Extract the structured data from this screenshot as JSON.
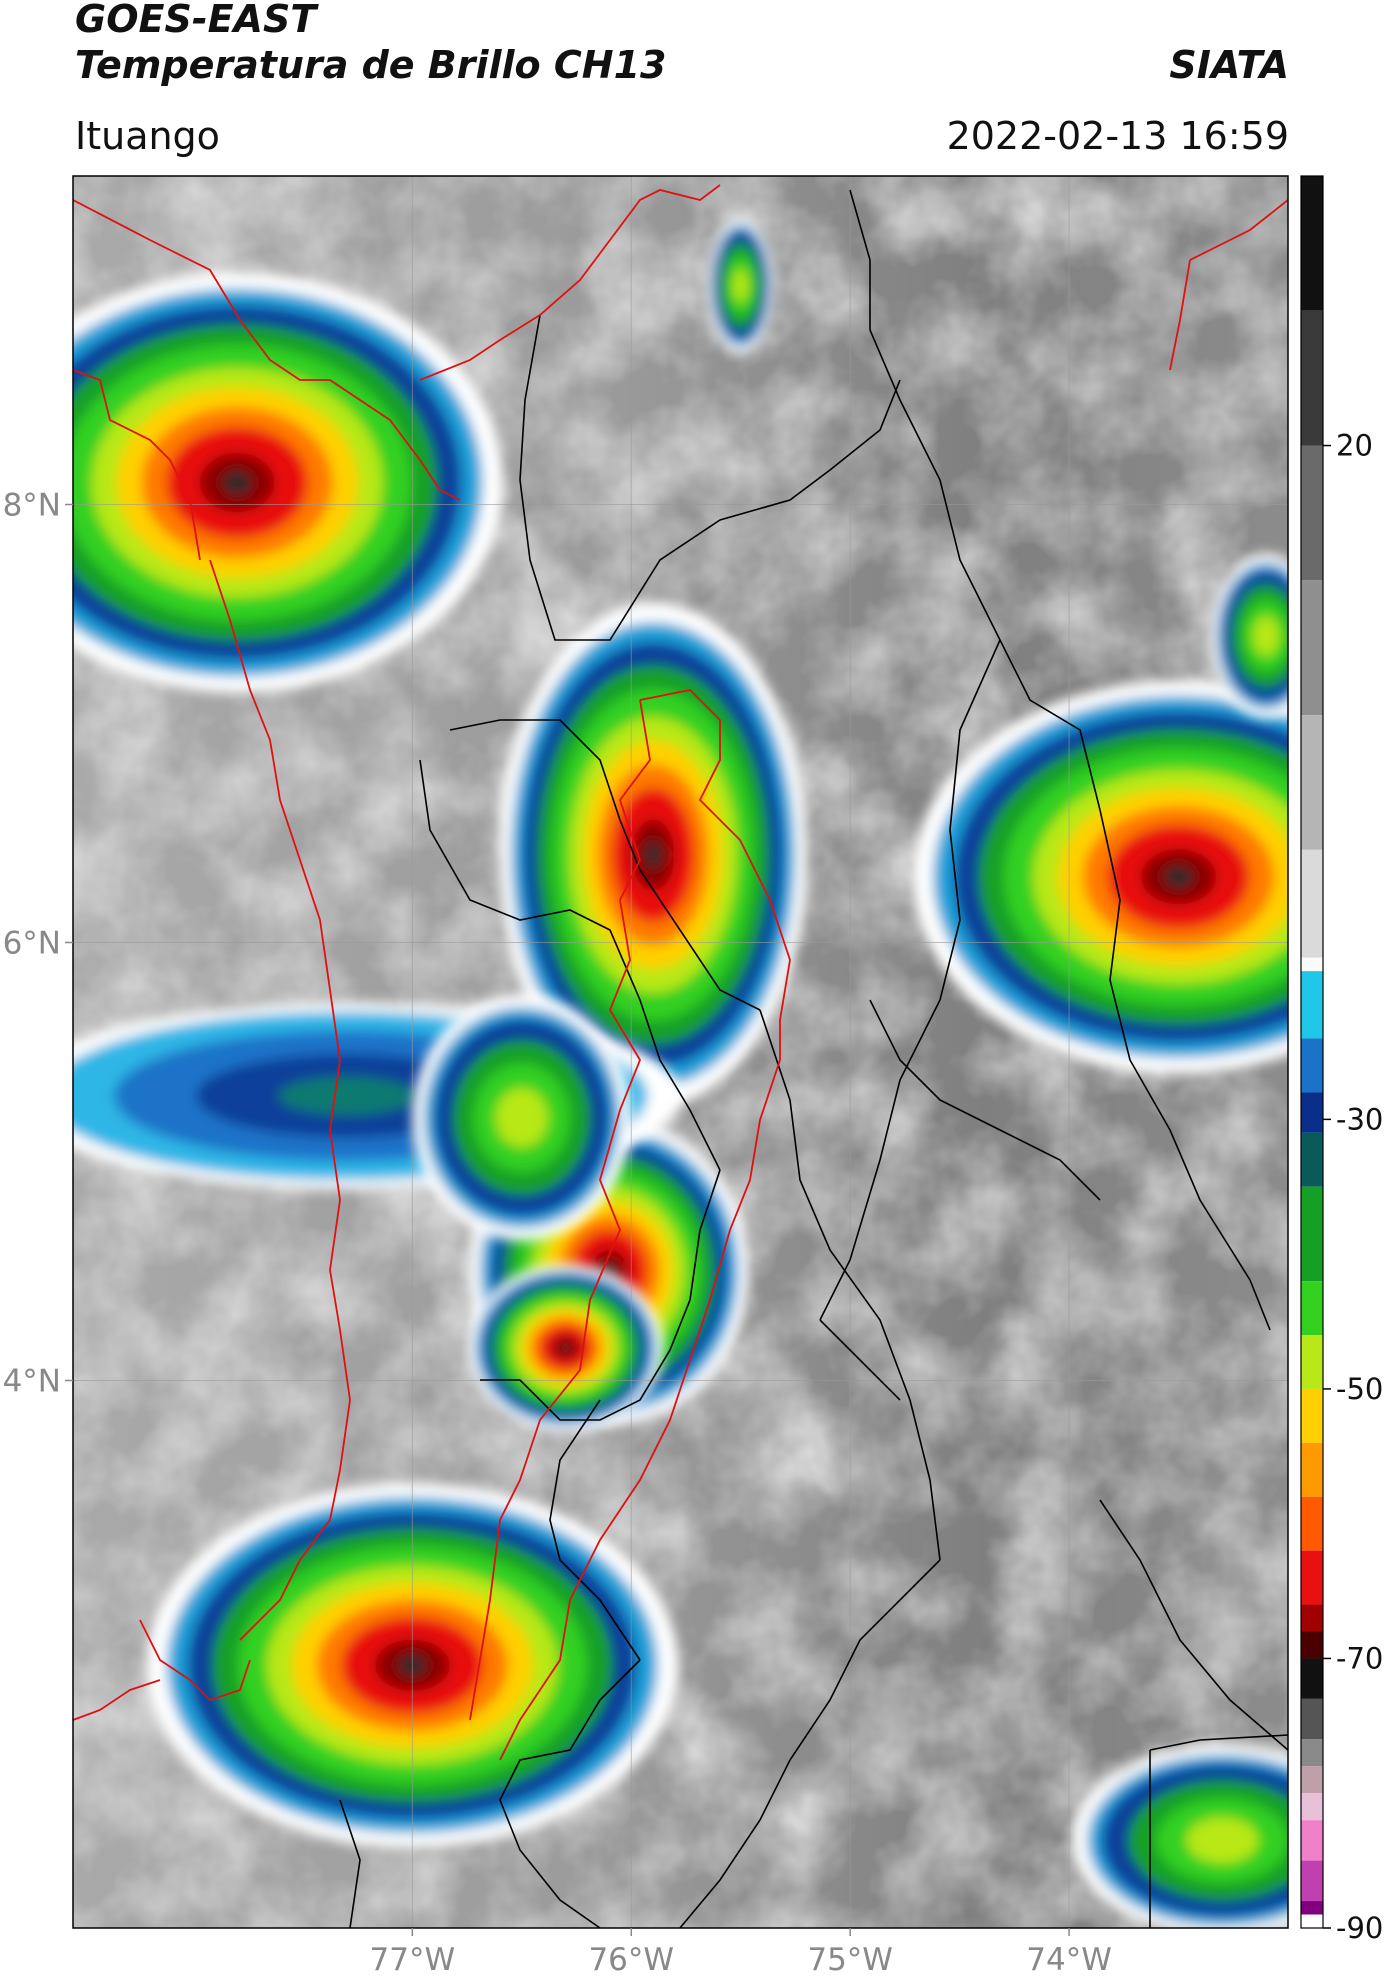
{
  "header": {
    "title_line1": "GOES-EAST",
    "title_line2": "Temperatura de Brillo CH13",
    "agency": "SIATA",
    "region": "Ituango",
    "timestamp": "2022-02-13 16:59"
  },
  "map": {
    "lon_range": [
      -78.55,
      -73.0
    ],
    "lat_range": [
      1.5,
      9.5
    ],
    "lat_ticks": [
      {
        "value": 8,
        "label": "8°N"
      },
      {
        "value": 6,
        "label": "6°N"
      },
      {
        "value": 4,
        "label": "4°N"
      }
    ],
    "lon_ticks": [
      {
        "value": -77,
        "label": "77°W"
      },
      {
        "value": -76,
        "label": "76°W"
      },
      {
        "value": -75,
        "label": "75°W"
      },
      {
        "value": -74,
        "label": "74°W"
      }
    ],
    "gridlines": true,
    "border_colors": {
      "department": "#000000",
      "highlight": "#e01010"
    }
  },
  "colorbar": {
    "range": [
      -90,
      40
    ],
    "ticks": [
      {
        "value": 20,
        "label": "20"
      },
      {
        "value": -30,
        "label": "-30"
      },
      {
        "value": -50,
        "label": "-50"
      },
      {
        "value": -70,
        "label": "-70"
      },
      {
        "value": -90,
        "label": "-90"
      }
    ]
  },
  "cloud_systems": [
    {
      "lon": -77.8,
      "lat": 8.1,
      "rx": 0.95,
      "ry": 0.75,
      "peak": "red"
    },
    {
      "lon": -75.9,
      "lat": 6.4,
      "rx": 0.55,
      "ry": 0.9,
      "peak": "red"
    },
    {
      "lon": -73.5,
      "lat": 6.3,
      "rx": 0.95,
      "ry": 0.7,
      "peak": "red"
    },
    {
      "lon": -76.1,
      "lat": 4.5,
      "rx": 0.5,
      "ry": 0.55,
      "peak": "red"
    },
    {
      "lon": -76.3,
      "lat": 4.15,
      "rx": 0.35,
      "ry": 0.3,
      "peak": "red"
    },
    {
      "lon": -77.0,
      "lat": 2.7,
      "rx": 0.95,
      "ry": 0.65,
      "peak": "red"
    },
    {
      "lon": -77.3,
      "lat": 5.3,
      "rx": 1.25,
      "ry": 0.35,
      "peak": "blue"
    },
    {
      "lon": -76.5,
      "lat": 5.2,
      "rx": 0.4,
      "ry": 0.45,
      "peak": "green"
    },
    {
      "lon": -73.3,
      "lat": 1.9,
      "rx": 0.55,
      "ry": 0.35,
      "peak": "green"
    },
    {
      "lon": -75.5,
      "lat": 9.0,
      "rx": 0.12,
      "ry": 0.25,
      "peak": "green"
    },
    {
      "lon": -73.1,
      "lat": 7.4,
      "rx": 0.2,
      "ry": 0.3,
      "peak": "green"
    }
  ]
}
